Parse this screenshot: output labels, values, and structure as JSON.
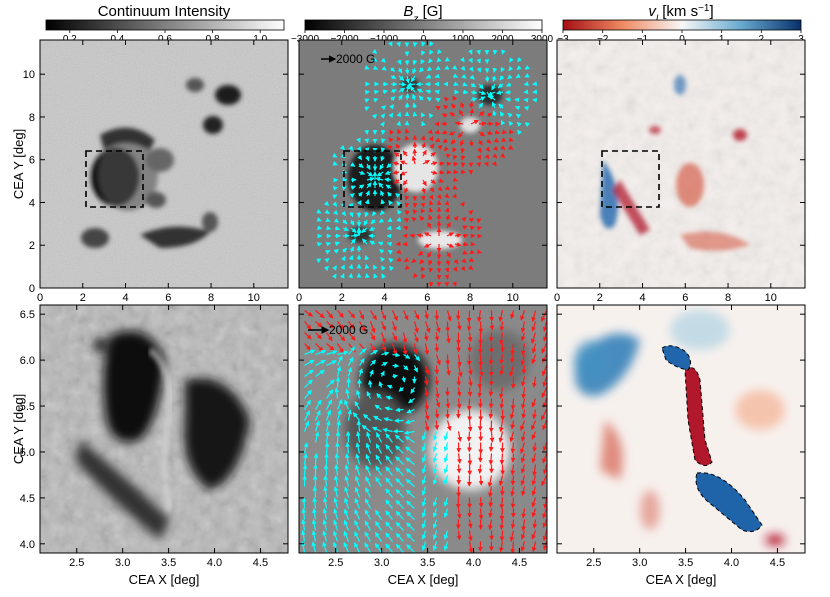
{
  "colorbars": [
    {
      "title": "Continuum Intensity",
      "min": 0.1,
      "max": 1.1,
      "ticks": [
        "0.2",
        "0.4",
        "0.6",
        "0.8",
        "1.0"
      ],
      "tick_values": [
        0.2,
        0.4,
        0.6,
        0.8,
        1.0
      ],
      "cmap": "grayscale"
    },
    {
      "title_main": "B",
      "title_sub": "z",
      "title_unit": " [G]",
      "min": -3000,
      "max": 3000,
      "ticks": [
        "−3000",
        "−2000",
        "−1000",
        "0",
        "1000",
        "2000",
        "3000"
      ],
      "tick_values": [
        -3000,
        -2000,
        -1000,
        0,
        1000,
        2000,
        3000
      ],
      "cmap": "grayscale"
    },
    {
      "title_main": "v",
      "title_sub": "l",
      "title_unit": " [km s",
      "title_sup": "−1",
      "title_end": "]",
      "min": -3,
      "max": 3,
      "ticks": [
        "−3",
        "−2",
        "−1",
        "0",
        "1",
        "2",
        "3"
      ],
      "tick_values": [
        -3,
        -2,
        -1,
        0,
        1,
        2,
        3
      ],
      "cmap": "red-white-blue",
      "colors": {
        "negative": "#a50f15",
        "zero": "#f7f7f7",
        "positive": "#08306b"
      }
    }
  ],
  "top_panels": {
    "xlabel": "",
    "ylabel": "CEA Y [deg]",
    "xlim": [
      0,
      11.6
    ],
    "ylim": [
      0,
      11.6
    ],
    "xticks": [
      "0",
      "2",
      "4",
      "6",
      "8",
      "10"
    ],
    "xtick_values": [
      0,
      2,
      4,
      6,
      8,
      10
    ],
    "yticks": [
      "0",
      "2",
      "4",
      "6",
      "8",
      "10"
    ],
    "ytick_values": [
      0,
      2,
      4,
      6,
      8,
      10
    ],
    "zoom_box": {
      "x": [
        2.15,
        4.8
      ],
      "y": [
        3.9,
        6.6
      ]
    }
  },
  "bottom_panels": {
    "xlabel": "CEA X [deg]",
    "ylabel": "CEA Y [deg]",
    "xlim": [
      2.1,
      4.8
    ],
    "ylim": [
      3.9,
      6.6
    ],
    "xticks": [
      "2.5",
      "3.0",
      "3.5",
      "4.0",
      "4.5"
    ],
    "xtick_values": [
      2.5,
      3.0,
      3.5,
      4.0,
      4.5
    ],
    "yticks": [
      "4.0",
      "4.5",
      "5.0",
      "5.5",
      "6.0",
      "6.5"
    ],
    "ytick_values": [
      4.0,
      4.5,
      5.0,
      5.5,
      6.0,
      6.5
    ]
  },
  "vector_legend": {
    "label": "2000 G",
    "colors": {
      "positive": "#ff1a1a",
      "negative": "#00ffff"
    }
  },
  "chart_data": [
    {
      "type": "heatmap",
      "title": "Continuum Intensity",
      "xlim": [
        0,
        11.6
      ],
      "ylim": [
        0,
        11.6
      ],
      "ylabel": "CEA Y [deg]",
      "note_features": [
        "sunspot group",
        "dashed zoom box"
      ]
    },
    {
      "type": "heatmap",
      "title": "Bz [G]",
      "xlim": [
        0,
        11.6
      ],
      "ylim": [
        0,
        11.6
      ],
      "overlay": "horizontal field vectors"
    },
    {
      "type": "heatmap",
      "title": "vl [km s−1]",
      "xlim": [
        0,
        11.6
      ],
      "ylim": [
        0,
        11.6
      ]
    },
    {
      "type": "heatmap",
      "xlim": [
        2.1,
        4.8
      ],
      "ylim": [
        3.9,
        6.6
      ],
      "xlabel": "CEA X [deg]",
      "ylabel": "CEA Y [deg]"
    },
    {
      "type": "heatmap",
      "xlim": [
        2.1,
        4.8
      ],
      "ylim": [
        3.9,
        6.6
      ],
      "xlabel": "CEA X [deg]",
      "overlay": "horizontal field vectors"
    },
    {
      "type": "heatmap",
      "xlim": [
        2.1,
        4.8
      ],
      "ylim": [
        3.9,
        6.6
      ],
      "xlabel": "CEA X [deg]",
      "contours": "dashed black"
    }
  ]
}
